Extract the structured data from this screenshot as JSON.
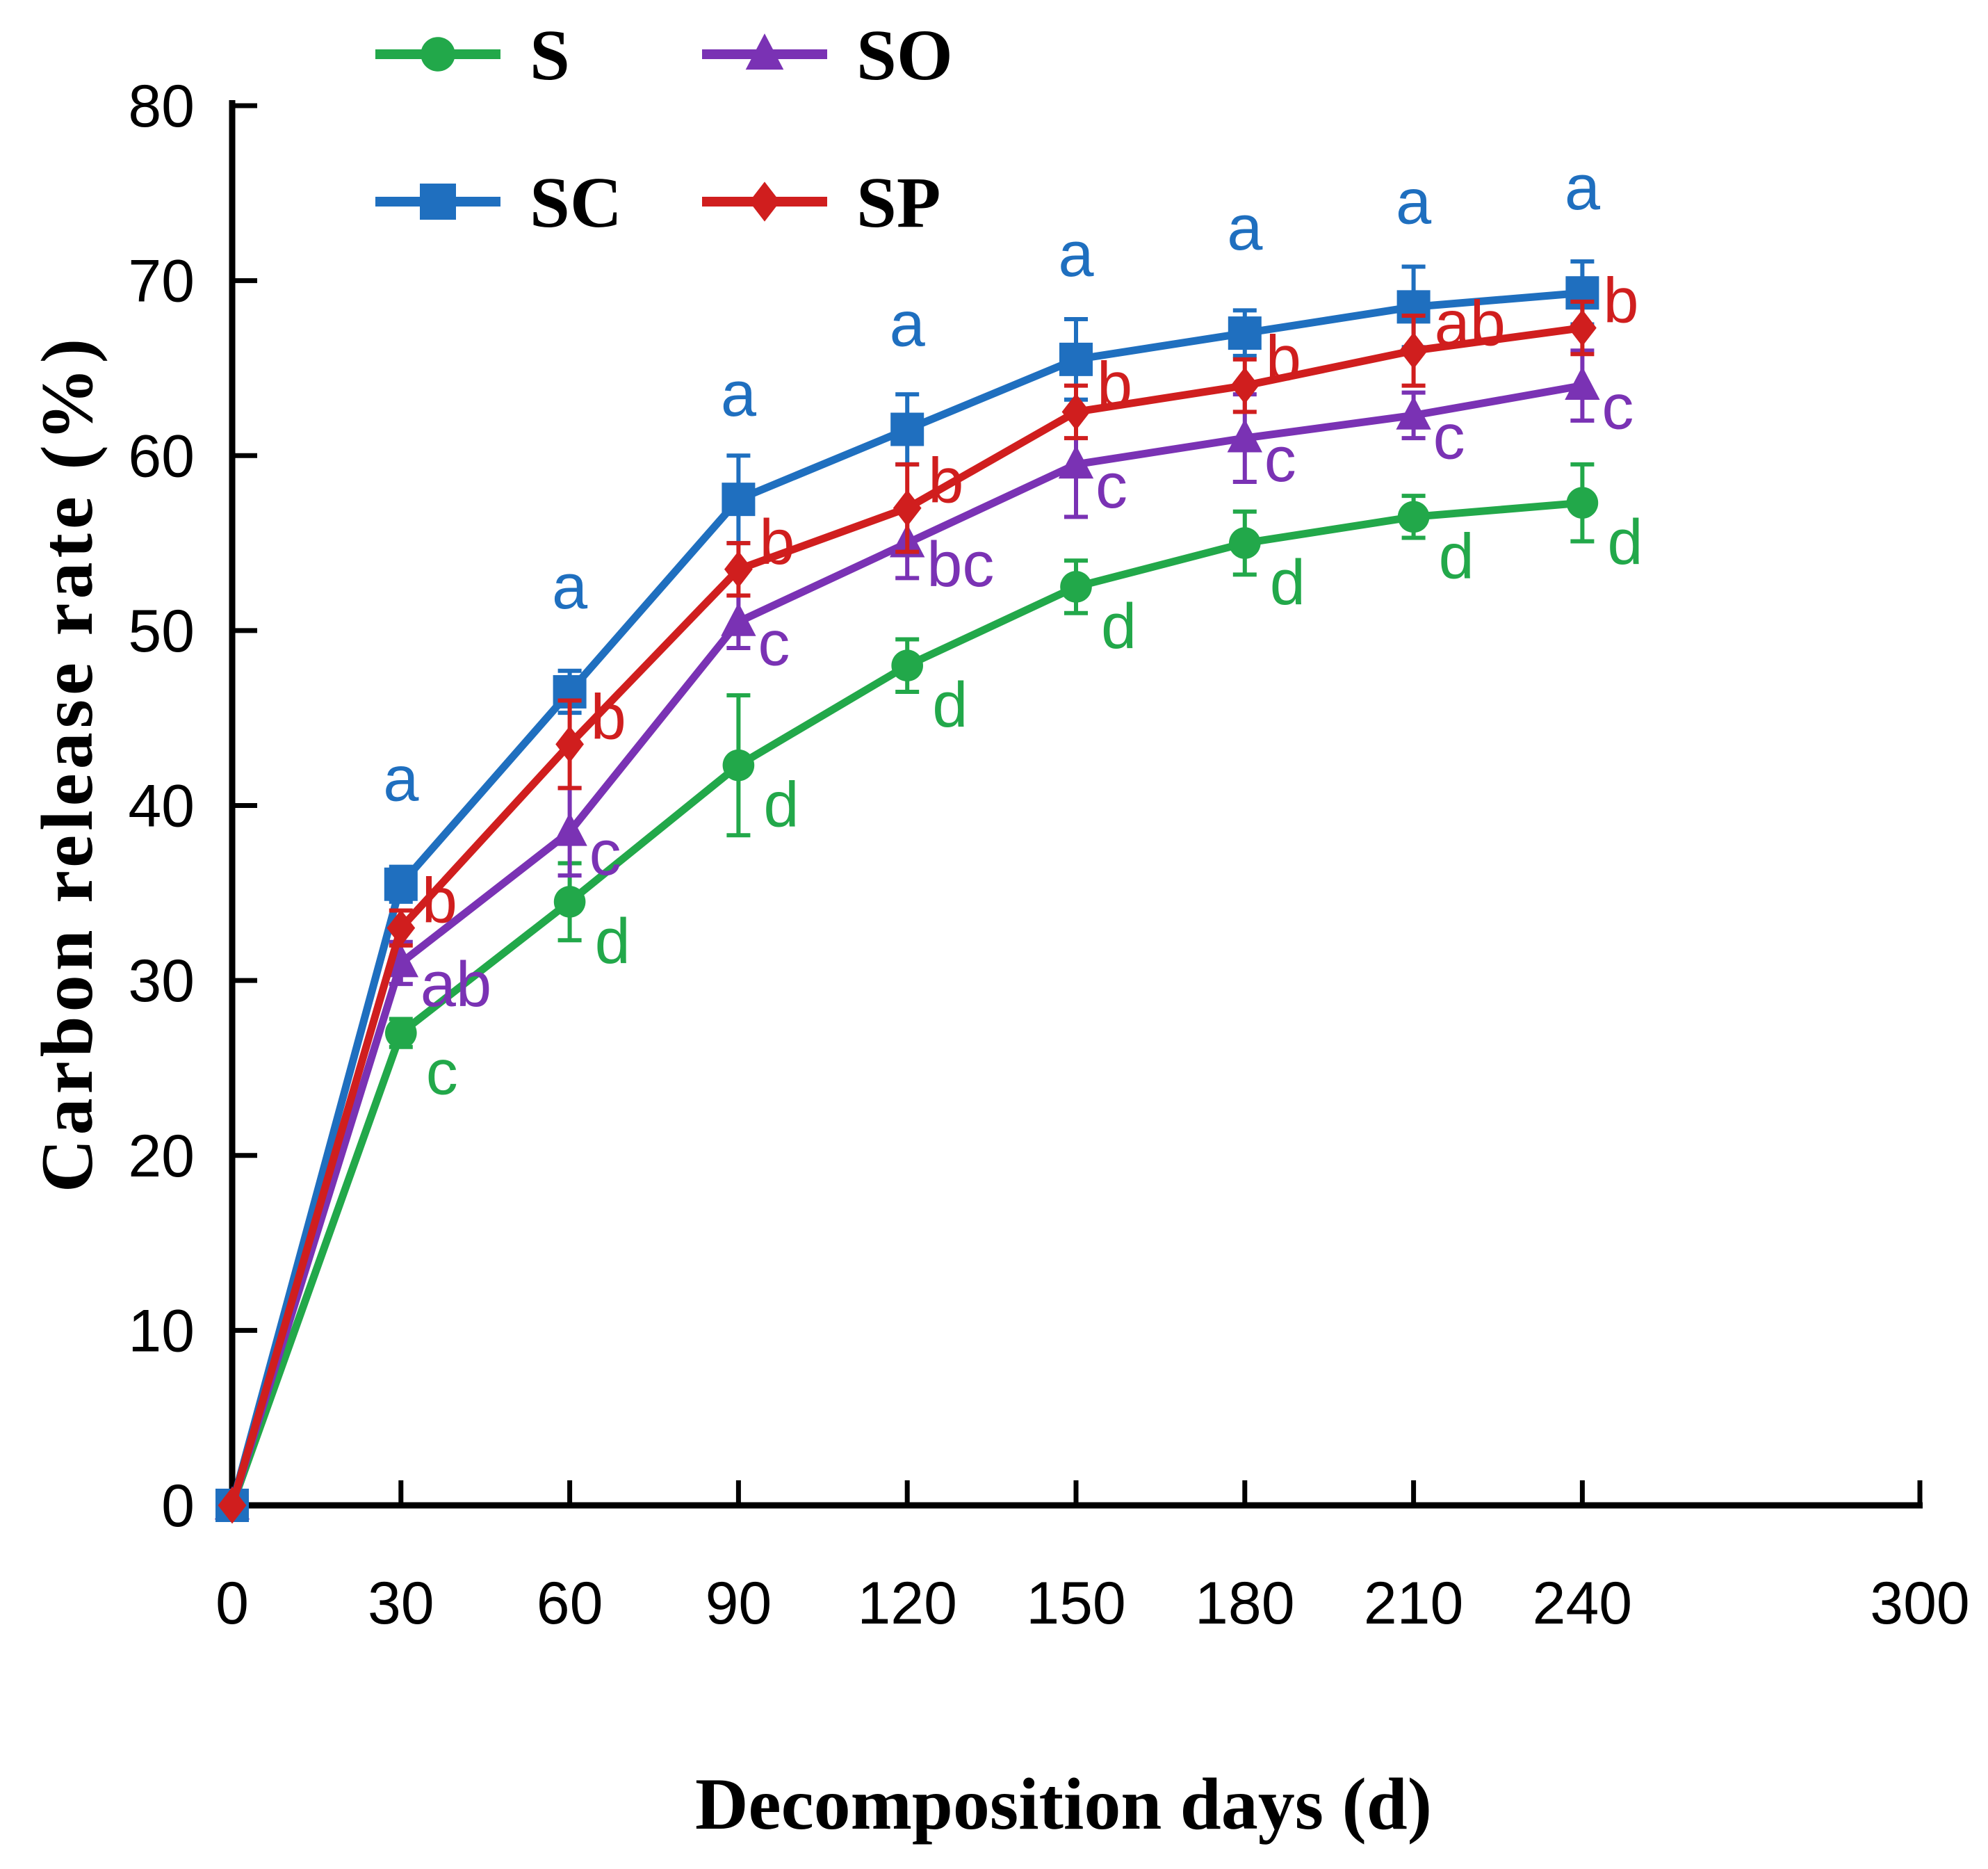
{
  "chart_data": {
    "type": "line",
    "title": "",
    "xlabel": "Decomposition days (d)",
    "ylabel": "Carbon release rate (%)",
    "xlim": [
      0,
      300
    ],
    "ylim": [
      0,
      80
    ],
    "x_ticks": [
      0,
      30,
      60,
      90,
      120,
      150,
      180,
      210,
      240,
      300
    ],
    "y_ticks": [
      0,
      10,
      20,
      30,
      40,
      50,
      60,
      70,
      80
    ],
    "x": [
      0,
      30,
      60,
      90,
      120,
      150,
      180,
      210,
      240
    ],
    "legend_position": "top-left",
    "series": [
      {
        "name": "S",
        "color": "#22a84a",
        "marker": "circle",
        "values": [
          0,
          27.0,
          34.5,
          42.3,
          48.0,
          52.5,
          55.0,
          56.5,
          57.3
        ],
        "errors": [
          0,
          0.8,
          2.2,
          4.0,
          1.5,
          1.5,
          1.8,
          1.2,
          2.2
        ],
        "labels": [
          "",
          "c",
          "d",
          "d",
          "d",
          "d",
          "d",
          "d",
          "d"
        ]
      },
      {
        "name": "SO",
        "color": "#7a32b4",
        "marker": "triangle",
        "values": [
          0,
          31.0,
          38.5,
          50.5,
          55.0,
          59.5,
          61.0,
          62.3,
          64.0
        ],
        "errors": [
          0,
          1.2,
          2.5,
          1.5,
          2.0,
          3.0,
          2.5,
          1.3,
          2.0
        ],
        "labels": [
          "",
          "ab",
          "c",
          "c",
          "bc",
          "c",
          "c",
          "c",
          "c"
        ]
      },
      {
        "name": "SC",
        "color": "#1f6fbf",
        "marker": "square",
        "values": [
          0,
          35.5,
          46.5,
          57.5,
          61.5,
          65.5,
          67.0,
          68.5,
          69.3
        ],
        "errors": [
          0,
          1.0,
          1.2,
          2.5,
          2.0,
          2.3,
          1.3,
          2.3,
          1.8
        ],
        "labels": [
          "",
          "a",
          "a",
          "a",
          "a",
          "a",
          "a",
          "a",
          "a"
        ]
      },
      {
        "name": "SP",
        "color": "#d01e1e",
        "marker": "diamond",
        "values": [
          0,
          33.0,
          43.5,
          53.5,
          57.0,
          62.5,
          64.0,
          66.0,
          67.3
        ],
        "errors": [
          0,
          1.0,
          2.5,
          1.5,
          2.5,
          1.5,
          1.5,
          2.0,
          1.5
        ],
        "labels": [
          "",
          "b",
          "b",
          "b",
          "b",
          "b",
          "b",
          "ab",
          "b"
        ]
      }
    ]
  }
}
